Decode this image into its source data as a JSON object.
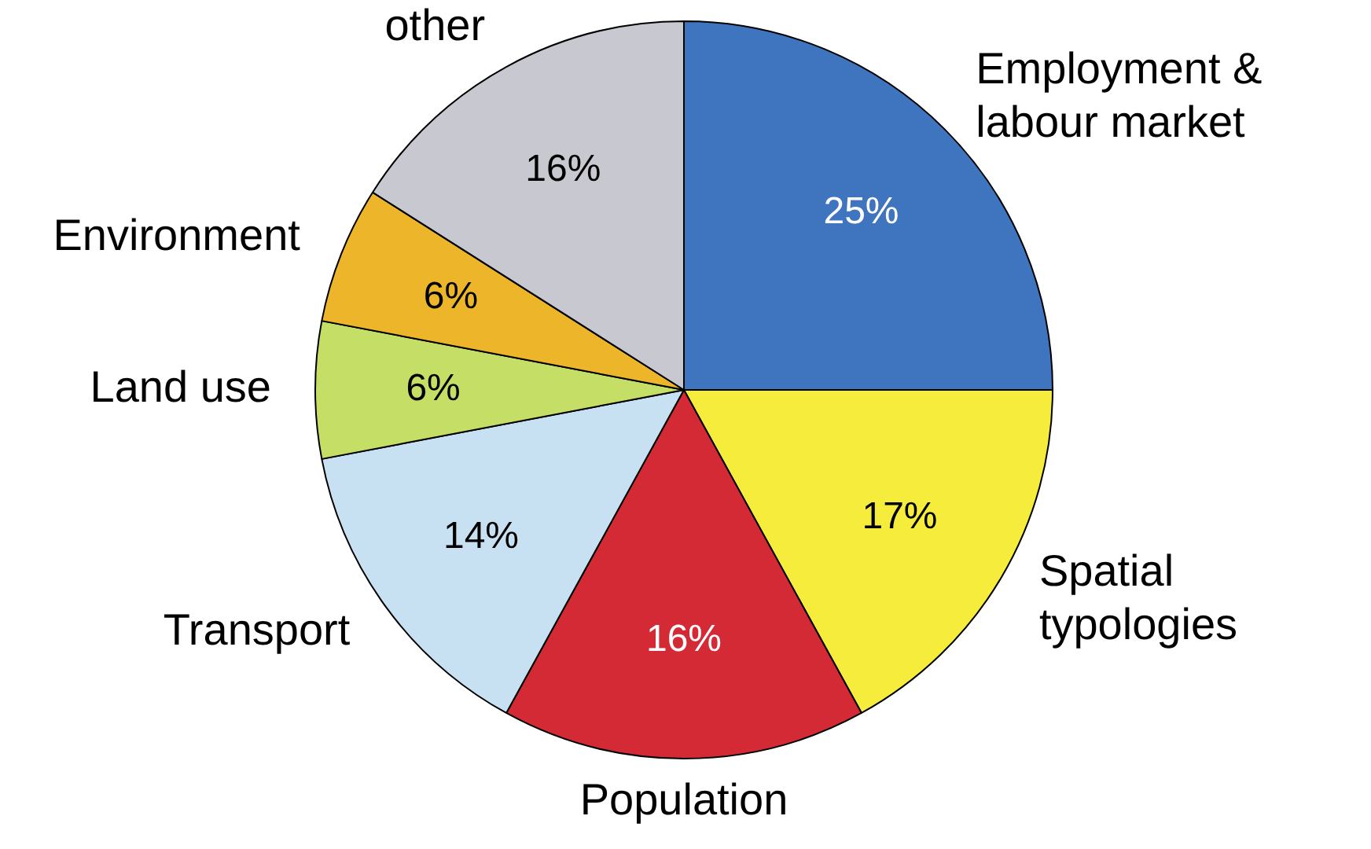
{
  "chart_data": {
    "type": "pie",
    "categories": [
      "Employment & labour market",
      "Spatial typologies",
      "Population",
      "Transport",
      "Land use",
      "Environment",
      "other"
    ],
    "values": [
      25,
      17,
      16,
      14,
      6,
      6,
      16
    ],
    "colors": [
      "#3f74bf",
      "#f5ec3c",
      "#d42a36",
      "#c8e1f2",
      "#c5de65",
      "#edb52a",
      "#c8c8d0"
    ],
    "value_labels": [
      "25%",
      "17%",
      "16%",
      "14%",
      "6%",
      "6%",
      "16%"
    ]
  }
}
